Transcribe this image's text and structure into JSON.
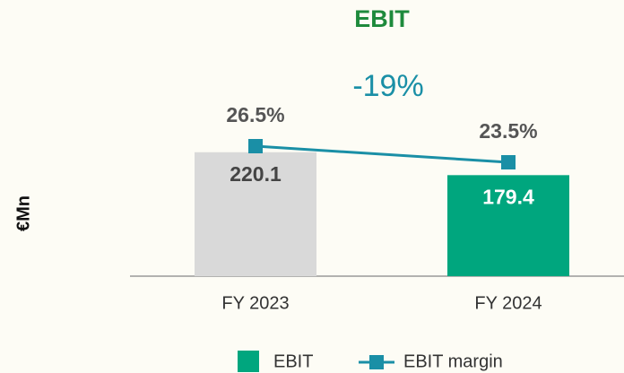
{
  "chart_data": {
    "type": "bar",
    "title": "EBIT",
    "annotation": "-19%",
    "y_label": "€Mn",
    "categories": [
      "FY 2023",
      "FY 2024"
    ],
    "series": [
      {
        "name": "EBIT",
        "type": "bar",
        "color": "#00a67e",
        "colors": [
          "#d9d9d9",
          "#00a67e"
        ],
        "values": [
          220.1,
          179.4
        ]
      },
      {
        "name": "EBIT margin",
        "type": "line",
        "axis": "y2",
        "color": "#1a8fa6",
        "values": [
          26.5,
          23.5
        ],
        "value_labels": [
          "26.5%",
          "23.5%"
        ]
      }
    ],
    "ylim": [
      0,
      250
    ],
    "y2lim": [
      0,
      40
    ],
    "grid": false
  }
}
